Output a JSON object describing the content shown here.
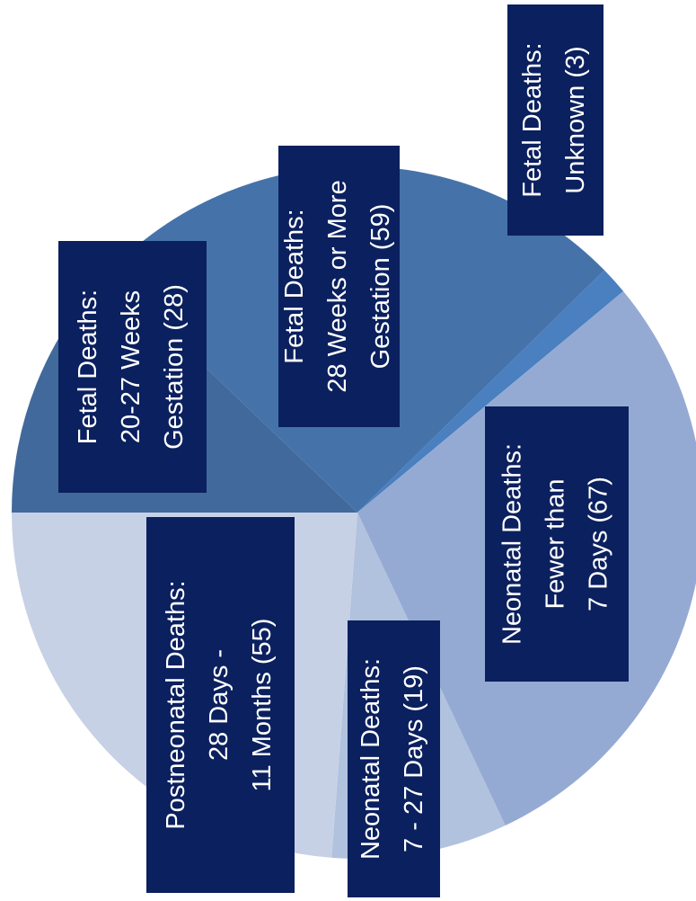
{
  "chart_data": {
    "type": "pie",
    "labels": [
      [
        "Fetal Deaths:",
        "20-27 Weeks",
        "Gestation (28)"
      ],
      [
        "Fetal Deaths:",
        "28 Weeks  or More",
        "Gestation (59)"
      ],
      [
        "Fetal Deaths:",
        "Unknown (3)"
      ],
      [
        "Neonatal Deaths:",
        "Fewer than",
        "7 Days (67)"
      ],
      [
        "Neonatal Deaths:",
        "7 - 27 Days (19)"
      ],
      [
        "Postneonatal Deaths:",
        "28 Days -",
        "11 Months (55)"
      ]
    ],
    "values": [
      28,
      59,
      3,
      67,
      19,
      55
    ],
    "colors": [
      "#41699b",
      "#4573a9",
      "#4a7fc0",
      "#95aad3",
      "#b1c2de",
      "#c7d1e5"
    ],
    "label_box_color": "#0b205e",
    "label_text_color": "#ffffff"
  }
}
